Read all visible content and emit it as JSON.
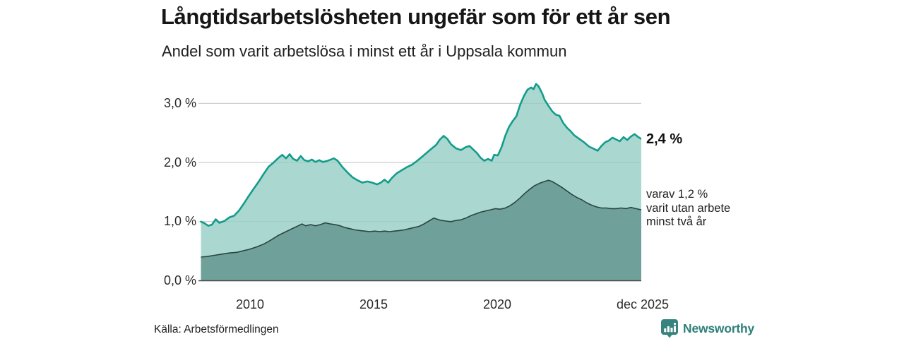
{
  "header": {
    "title": "Långtidsarbetslösheten ungefär som för ett år sen",
    "subtitle": "Andel som varit arbetslösa i minst ett år i Uppsala kommun"
  },
  "chart_data": {
    "type": "area",
    "title": "Långtidsarbetslösheten ungefär som för ett år sen",
    "subtitle": "Andel som varit arbetslösa i minst ett år i Uppsala kommun",
    "x_axis": {
      "range": [
        2007.95,
        2025.92
      ],
      "ticks": [
        {
          "label": "2010",
          "value": 2010
        },
        {
          "label": "2015",
          "value": 2015
        },
        {
          "label": "2020",
          "value": 2020
        },
        {
          "label": "dec 2025",
          "value": 2025.92
        }
      ]
    },
    "y_axis": {
      "range": [
        0,
        3.5
      ],
      "unit": "%",
      "gridlines": [
        1,
        2,
        3
      ],
      "ticks": [
        {
          "label": "3,0 %",
          "value": 3
        },
        {
          "label": "2,0 %",
          "value": 2
        },
        {
          "label": "1,0 %",
          "value": 1
        },
        {
          "label": "0,0 %",
          "value": 0
        }
      ]
    },
    "legend_position": "none",
    "grid": true,
    "series": [
      {
        "name": "Andel arbetslösa minst ett år",
        "line_color": "#149c8a",
        "fill_color": "#aad8d1",
        "last_value": 2.4,
        "points": [
          [
            2008.05,
            1.0
          ],
          [
            2008.2,
            0.97
          ],
          [
            2008.35,
            0.93
          ],
          [
            2008.5,
            0.95
          ],
          [
            2008.65,
            1.04
          ],
          [
            2008.8,
            0.98
          ],
          [
            2009.0,
            1.01
          ],
          [
            2009.2,
            1.07
          ],
          [
            2009.4,
            1.1
          ],
          [
            2009.6,
            1.19
          ],
          [
            2009.8,
            1.31
          ],
          [
            2010.0,
            1.44
          ],
          [
            2010.2,
            1.56
          ],
          [
            2010.4,
            1.68
          ],
          [
            2010.6,
            1.81
          ],
          [
            2010.8,
            1.93
          ],
          [
            2011.0,
            2.0
          ],
          [
            2011.2,
            2.08
          ],
          [
            2011.35,
            2.13
          ],
          [
            2011.5,
            2.07
          ],
          [
            2011.65,
            2.14
          ],
          [
            2011.8,
            2.06
          ],
          [
            2011.95,
            2.03
          ],
          [
            2012.1,
            2.11
          ],
          [
            2012.25,
            2.04
          ],
          [
            2012.4,
            2.02
          ],
          [
            2012.55,
            2.05
          ],
          [
            2012.7,
            2.01
          ],
          [
            2012.85,
            2.04
          ],
          [
            2013.0,
            2.01
          ],
          [
            2013.2,
            2.03
          ],
          [
            2013.45,
            2.07
          ],
          [
            2013.6,
            2.03
          ],
          [
            2013.8,
            1.92
          ],
          [
            2014.0,
            1.83
          ],
          [
            2014.2,
            1.75
          ],
          [
            2014.4,
            1.7
          ],
          [
            2014.6,
            1.66
          ],
          [
            2014.8,
            1.68
          ],
          [
            2015.0,
            1.66
          ],
          [
            2015.2,
            1.63
          ],
          [
            2015.35,
            1.66
          ],
          [
            2015.5,
            1.71
          ],
          [
            2015.65,
            1.66
          ],
          [
            2015.8,
            1.74
          ],
          [
            2016.0,
            1.82
          ],
          [
            2016.2,
            1.87
          ],
          [
            2016.4,
            1.92
          ],
          [
            2016.6,
            1.96
          ],
          [
            2016.8,
            2.02
          ],
          [
            2017.0,
            2.09
          ],
          [
            2017.2,
            2.16
          ],
          [
            2017.4,
            2.23
          ],
          [
            2017.6,
            2.3
          ],
          [
            2017.75,
            2.39
          ],
          [
            2017.9,
            2.45
          ],
          [
            2018.05,
            2.4
          ],
          [
            2018.2,
            2.31
          ],
          [
            2018.4,
            2.24
          ],
          [
            2018.6,
            2.21
          ],
          [
            2018.8,
            2.26
          ],
          [
            2018.95,
            2.28
          ],
          [
            2019.1,
            2.22
          ],
          [
            2019.25,
            2.16
          ],
          [
            2019.4,
            2.08
          ],
          [
            2019.55,
            2.03
          ],
          [
            2019.7,
            2.06
          ],
          [
            2019.85,
            2.03
          ],
          [
            2019.95,
            2.13
          ],
          [
            2020.1,
            2.12
          ],
          [
            2020.25,
            2.26
          ],
          [
            2020.4,
            2.45
          ],
          [
            2020.55,
            2.6
          ],
          [
            2020.7,
            2.7
          ],
          [
            2020.85,
            2.78
          ],
          [
            2021.0,
            2.97
          ],
          [
            2021.15,
            3.12
          ],
          [
            2021.3,
            3.23
          ],
          [
            2021.45,
            3.27
          ],
          [
            2021.55,
            3.24
          ],
          [
            2021.65,
            3.33
          ],
          [
            2021.75,
            3.29
          ],
          [
            2021.9,
            3.17
          ],
          [
            2022.0,
            3.06
          ],
          [
            2022.15,
            2.96
          ],
          [
            2022.3,
            2.87
          ],
          [
            2022.45,
            2.81
          ],
          [
            2022.6,
            2.79
          ],
          [
            2022.75,
            2.67
          ],
          [
            2022.9,
            2.59
          ],
          [
            2023.05,
            2.53
          ],
          [
            2023.2,
            2.46
          ],
          [
            2023.4,
            2.4
          ],
          [
            2023.6,
            2.34
          ],
          [
            2023.8,
            2.27
          ],
          [
            2024.0,
            2.23
          ],
          [
            2024.15,
            2.2
          ],
          [
            2024.3,
            2.28
          ],
          [
            2024.45,
            2.34
          ],
          [
            2024.6,
            2.37
          ],
          [
            2024.75,
            2.42
          ],
          [
            2024.9,
            2.39
          ],
          [
            2025.05,
            2.36
          ],
          [
            2025.2,
            2.43
          ],
          [
            2025.35,
            2.38
          ],
          [
            2025.5,
            2.44
          ],
          [
            2025.65,
            2.48
          ],
          [
            2025.8,
            2.43
          ],
          [
            2025.92,
            2.4
          ]
        ]
      },
      {
        "name": "Varav utan arbete minst två år",
        "line_color": "#2a4541",
        "fill_color": "#6fa19a",
        "last_value": 1.2,
        "points": [
          [
            2008.05,
            0.4
          ],
          [
            2008.3,
            0.41
          ],
          [
            2008.6,
            0.43
          ],
          [
            2008.9,
            0.45
          ],
          [
            2009.2,
            0.47
          ],
          [
            2009.5,
            0.48
          ],
          [
            2009.8,
            0.51
          ],
          [
            2010.0,
            0.53
          ],
          [
            2010.3,
            0.57
          ],
          [
            2010.6,
            0.62
          ],
          [
            2010.9,
            0.69
          ],
          [
            2011.2,
            0.77
          ],
          [
            2011.5,
            0.83
          ],
          [
            2011.8,
            0.89
          ],
          [
            2012.0,
            0.93
          ],
          [
            2012.15,
            0.96
          ],
          [
            2012.3,
            0.93
          ],
          [
            2012.5,
            0.95
          ],
          [
            2012.7,
            0.93
          ],
          [
            2012.9,
            0.95
          ],
          [
            2013.1,
            0.98
          ],
          [
            2013.3,
            0.96
          ],
          [
            2013.5,
            0.95
          ],
          [
            2013.7,
            0.93
          ],
          [
            2013.9,
            0.9
          ],
          [
            2014.1,
            0.88
          ],
          [
            2014.3,
            0.86
          ],
          [
            2014.5,
            0.85
          ],
          [
            2014.7,
            0.84
          ],
          [
            2014.9,
            0.83
          ],
          [
            2015.1,
            0.84
          ],
          [
            2015.3,
            0.83
          ],
          [
            2015.5,
            0.84
          ],
          [
            2015.7,
            0.83
          ],
          [
            2015.9,
            0.84
          ],
          [
            2016.1,
            0.85
          ],
          [
            2016.3,
            0.86
          ],
          [
            2016.5,
            0.88
          ],
          [
            2016.7,
            0.9
          ],
          [
            2016.9,
            0.92
          ],
          [
            2017.1,
            0.96
          ],
          [
            2017.3,
            1.01
          ],
          [
            2017.5,
            1.06
          ],
          [
            2017.65,
            1.04
          ],
          [
            2017.8,
            1.02
          ],
          [
            2018.0,
            1.01
          ],
          [
            2018.2,
            1.0
          ],
          [
            2018.4,
            1.02
          ],
          [
            2018.6,
            1.03
          ],
          [
            2018.8,
            1.06
          ],
          [
            2019.0,
            1.1
          ],
          [
            2019.2,
            1.13
          ],
          [
            2019.4,
            1.16
          ],
          [
            2019.6,
            1.18
          ],
          [
            2019.8,
            1.2
          ],
          [
            2020.0,
            1.22
          ],
          [
            2020.2,
            1.21
          ],
          [
            2020.4,
            1.23
          ],
          [
            2020.6,
            1.27
          ],
          [
            2020.8,
            1.33
          ],
          [
            2021.0,
            1.4
          ],
          [
            2021.2,
            1.48
          ],
          [
            2021.4,
            1.55
          ],
          [
            2021.6,
            1.61
          ],
          [
            2021.8,
            1.65
          ],
          [
            2022.0,
            1.68
          ],
          [
            2022.15,
            1.7
          ],
          [
            2022.3,
            1.68
          ],
          [
            2022.5,
            1.63
          ],
          [
            2022.7,
            1.58
          ],
          [
            2022.9,
            1.52
          ],
          [
            2023.1,
            1.46
          ],
          [
            2023.3,
            1.41
          ],
          [
            2023.5,
            1.37
          ],
          [
            2023.7,
            1.32
          ],
          [
            2023.9,
            1.28
          ],
          [
            2024.1,
            1.25
          ],
          [
            2024.3,
            1.23
          ],
          [
            2024.5,
            1.23
          ],
          [
            2024.7,
            1.22
          ],
          [
            2024.9,
            1.22
          ],
          [
            2025.1,
            1.23
          ],
          [
            2025.3,
            1.22
          ],
          [
            2025.5,
            1.24
          ],
          [
            2025.7,
            1.22
          ],
          [
            2025.92,
            1.2
          ]
        ]
      }
    ]
  },
  "annotations": {
    "total_label": "2,4 %",
    "two_year_lines": [
      "varav 1,2 %",
      "varit utan arbete",
      "minst två år"
    ]
  },
  "footer": {
    "source": "Källa: Arbetsförmedlingen",
    "brand": "Newsworthy"
  },
  "colors": {
    "line_total": "#149c8a",
    "fill_total": "#aad8d1",
    "line_two_year": "#2a4541",
    "fill_two_year": "#6fa19a",
    "gridline": "#dddddd",
    "baseline": "#474747",
    "brand_teal": "#2e7f79",
    "brand_icon": "#37837d"
  }
}
